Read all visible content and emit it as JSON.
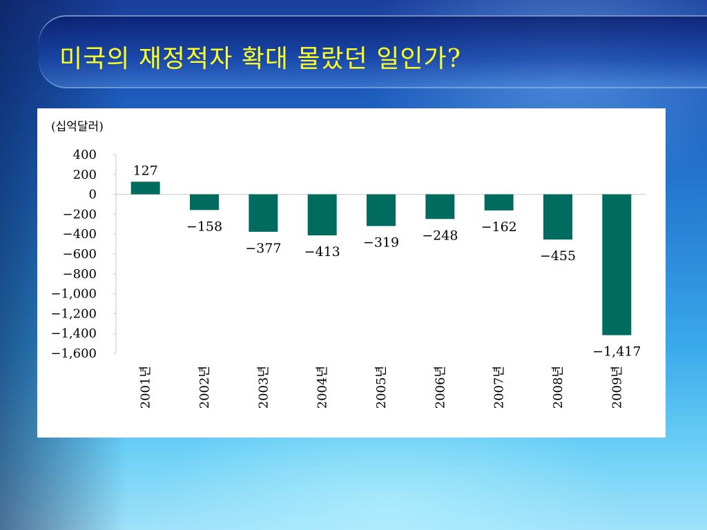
{
  "slide": {
    "title": "미국의 재정적자 확대 몰랐던 일인가?"
  },
  "colors": {
    "bar": "#006c5f",
    "title": "#ffff1f"
  },
  "chart_data": {
    "type": "bar",
    "unit_label": "(십억달러)",
    "categories": [
      "2001년",
      "2002년",
      "2003년",
      "2004년",
      "2005년",
      "2006년",
      "2007년",
      "2008년",
      "2009년"
    ],
    "values": [
      127,
      -158,
      -377,
      -413,
      -319,
      -248,
      -162,
      -455,
      -1417
    ],
    "value_labels": [
      "127",
      "−158",
      "−377",
      "−413",
      "−319",
      "−248",
      "−162",
      "−455",
      "−1,417"
    ],
    "ylim": [
      -1600,
      400
    ],
    "yticks": [
      400,
      200,
      0,
      -200,
      -400,
      -600,
      -800,
      -1000,
      -1200,
      -1400,
      -1600
    ],
    "ytick_labels": [
      "400",
      "200",
      "0",
      "−200",
      "−400",
      "−600",
      "−800",
      "−1,000",
      "−1,200",
      "−1,400",
      "−1,600"
    ],
    "grid": false,
    "legend": "none"
  }
}
